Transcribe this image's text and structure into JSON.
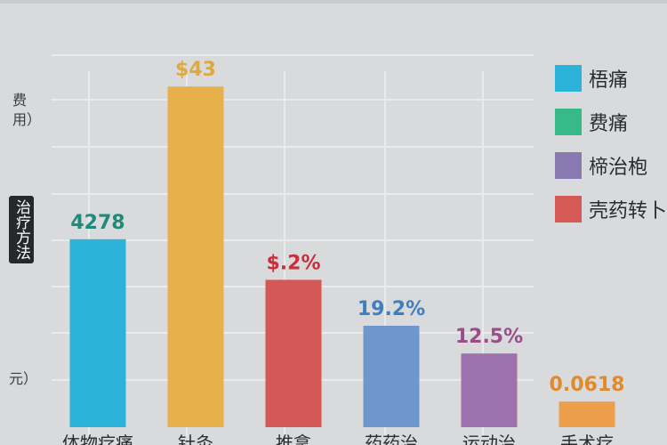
{
  "chart_data": {
    "type": "bar",
    "categories": [
      "体物疗痛",
      "针灸",
      "推拿",
      "药药治",
      "运动治",
      "手术疗"
    ],
    "values": [
      17.6,
      31.9,
      13.8,
      9.5,
      6.9,
      2.4
    ],
    "value_labels": [
      "4278",
      "$43",
      "$.2%",
      "19.2%",
      "12.5%",
      "0.0618"
    ],
    "colors": [
      "#2bb3da",
      "#e7b04a",
      "#d55858",
      "#6e98cd",
      "#9d72ad",
      "#ec9e4a"
    ],
    "label_colors": [
      "#1e8a78",
      "#e0a93a",
      "#cc2f3a",
      "#3f7fc0",
      "#9a4d88",
      "#e08a2a"
    ],
    "ylim": [
      0,
      36
    ],
    "grid": true,
    "ylabel_top": "费用）",
    "ylabel_box": "治疗方法",
    "ylabel_bottom": "元）",
    "legend": {
      "position": "top-right",
      "items": [
        {
          "label": "梧痛",
          "color": "#2bb3da"
        },
        {
          "label": "费痛",
          "color": "#38b98a"
        },
        {
          "label": "楴治枹",
          "color": "#8a78b0"
        },
        {
          "label": "壳药转卜",
          "color": "#d55a55"
        }
      ]
    }
  }
}
